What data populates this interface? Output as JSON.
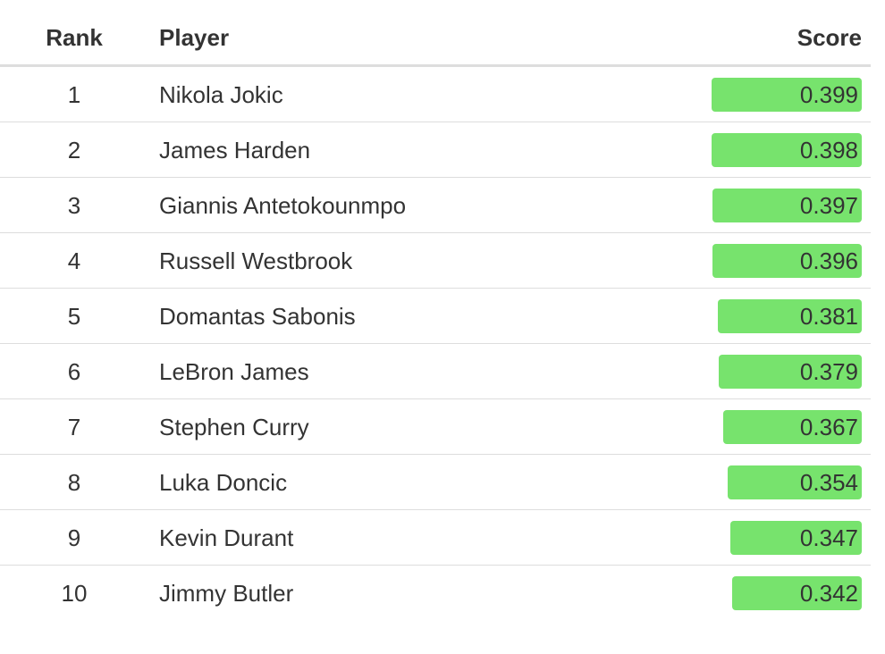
{
  "chart_data": {
    "type": "table",
    "columns": [
      "Rank",
      "Player",
      "Score"
    ],
    "bar_color": "#77e36d",
    "rows": [
      {
        "rank": "1",
        "player": "Nikola Jokic",
        "score": "0.399",
        "value": 0.399
      },
      {
        "rank": "2",
        "player": "James Harden",
        "score": "0.398",
        "value": 0.398
      },
      {
        "rank": "3",
        "player": "Giannis Antetokounmpo",
        "score": "0.397",
        "value": 0.397
      },
      {
        "rank": "4",
        "player": "Russell Westbrook",
        "score": "0.396",
        "value": 0.396
      },
      {
        "rank": "5",
        "player": "Domantas Sabonis",
        "score": "0.381",
        "value": 0.381
      },
      {
        "rank": "6",
        "player": "LeBron James",
        "score": "0.379",
        "value": 0.379
      },
      {
        "rank": "7",
        "player": "Stephen Curry",
        "score": "0.367",
        "value": 0.367
      },
      {
        "rank": "8",
        "player": "Luka Doncic",
        "score": "0.354",
        "value": 0.354
      },
      {
        "rank": "9",
        "player": "Kevin Durant",
        "score": "0.347",
        "value": 0.347
      },
      {
        "rank": "10",
        "player": "Jimmy Butler",
        "score": "0.342",
        "value": 0.342
      }
    ]
  }
}
